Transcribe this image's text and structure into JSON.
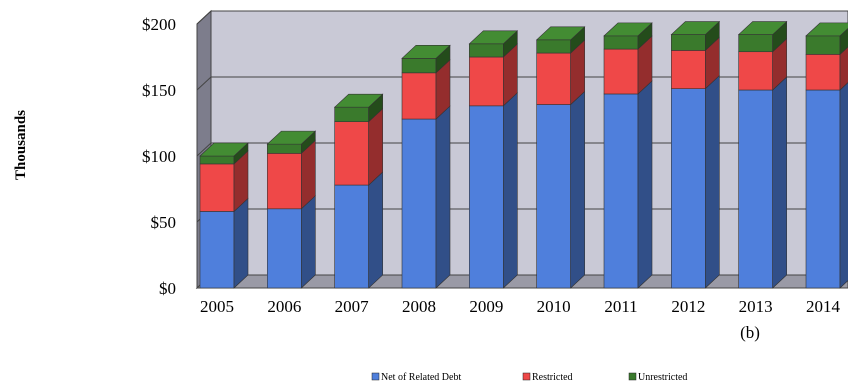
{
  "chart_data": {
    "type": "bar",
    "stacked": true,
    "three_d": true,
    "categories": [
      "2005",
      "2006",
      "2007",
      "2008",
      "2009",
      "2010",
      "2011",
      "2012",
      "2013",
      "2014"
    ],
    "series": [
      {
        "name": "Net of Related Debt",
        "color": "#4f7fdc",
        "values": [
          58,
          60,
          78,
          128,
          138,
          139,
          147,
          151,
          150,
          150
        ]
      },
      {
        "name": "Restricted",
        "color": "#ef4848",
        "values": [
          36,
          42,
          48,
          35,
          37,
          39,
          34,
          29,
          29,
          27
        ]
      },
      {
        "name": "Unrestricted",
        "color": "#3a7a2c",
        "values": [
          6,
          7,
          11,
          11,
          10,
          10,
          10,
          12,
          13,
          14
        ]
      }
    ],
    "ylabel": "Thousands",
    "ylim": [
      0,
      200
    ],
    "yticks": [
      "$0",
      "$50",
      "$100",
      "$150",
      "$200"
    ],
    "ytick_values": [
      0,
      50,
      100,
      150,
      200
    ],
    "annotation": "(b)",
    "grid": true,
    "legend_position": "bottom"
  }
}
